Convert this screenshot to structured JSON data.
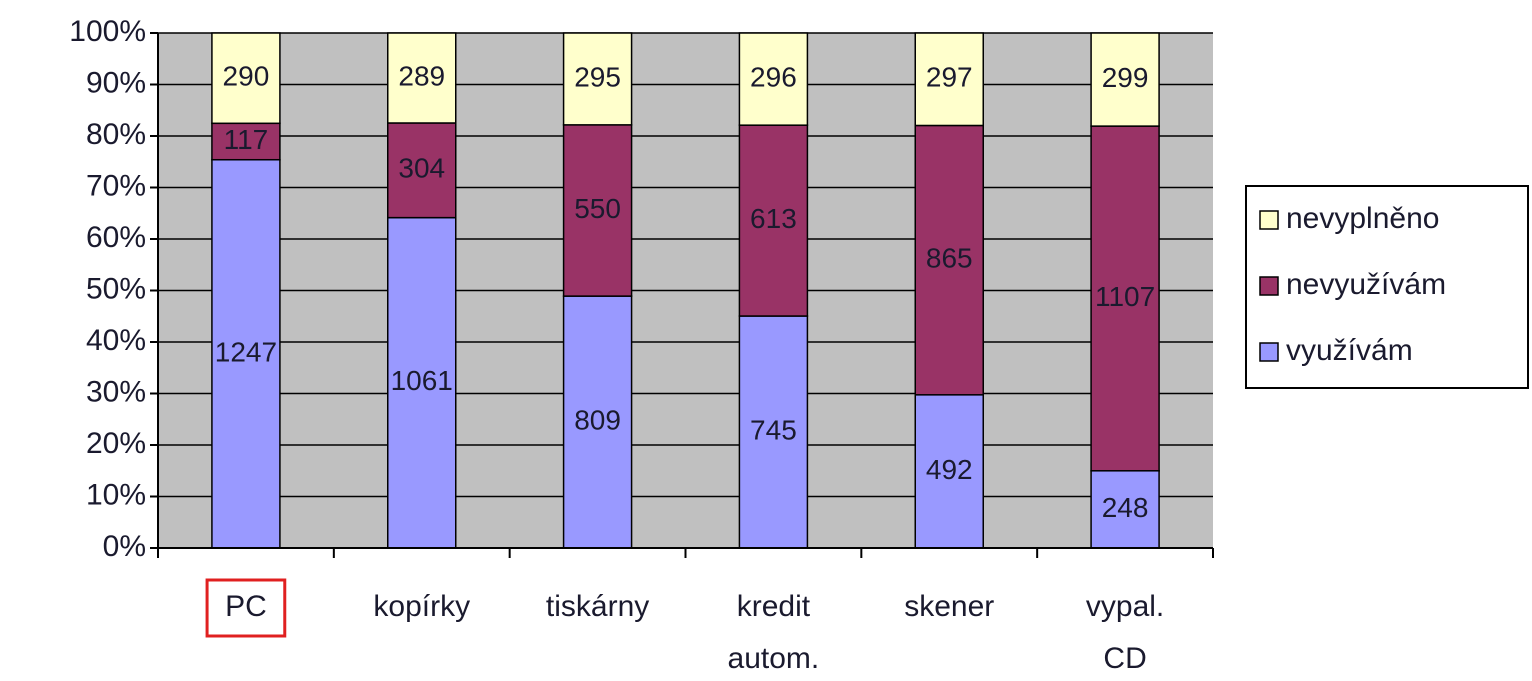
{
  "chart_data": {
    "type": "bar",
    "stacking": "percent",
    "categories": [
      "PC",
      "kopírky",
      "tiskárny",
      "kredit autom.",
      "skener",
      "vypal. CD"
    ],
    "series": [
      {
        "name": "využívám",
        "color": "#9999ff",
        "values": [
          1247,
          1061,
          809,
          745,
          492,
          248
        ]
      },
      {
        "name": "nevyužívám",
        "color": "#993366",
        "values": [
          117,
          304,
          550,
          613,
          865,
          1107
        ]
      },
      {
        "name": "nevyplněno",
        "color": "#ffffcc",
        "values": [
          290,
          289,
          295,
          296,
          297,
          299
        ]
      }
    ],
    "ylim": [
      0,
      100
    ],
    "yticks": [
      {
        "value": 0,
        "label": "0%"
      },
      {
        "value": 10,
        "label": "10%"
      },
      {
        "value": 20,
        "label": "20%"
      },
      {
        "value": 30,
        "label": "30%"
      },
      {
        "value": 40,
        "label": "40%"
      },
      {
        "value": 50,
        "label": "50%"
      },
      {
        "value": 60,
        "label": "60%"
      },
      {
        "value": 70,
        "label": "70%"
      },
      {
        "value": 80,
        "label": "80%"
      },
      {
        "value": 90,
        "label": "90%"
      },
      {
        "value": 100,
        "label": "100%"
      }
    ],
    "grid": true,
    "plot_background": "#c0c0c0",
    "legend": "right",
    "highlight_category": 0
  }
}
